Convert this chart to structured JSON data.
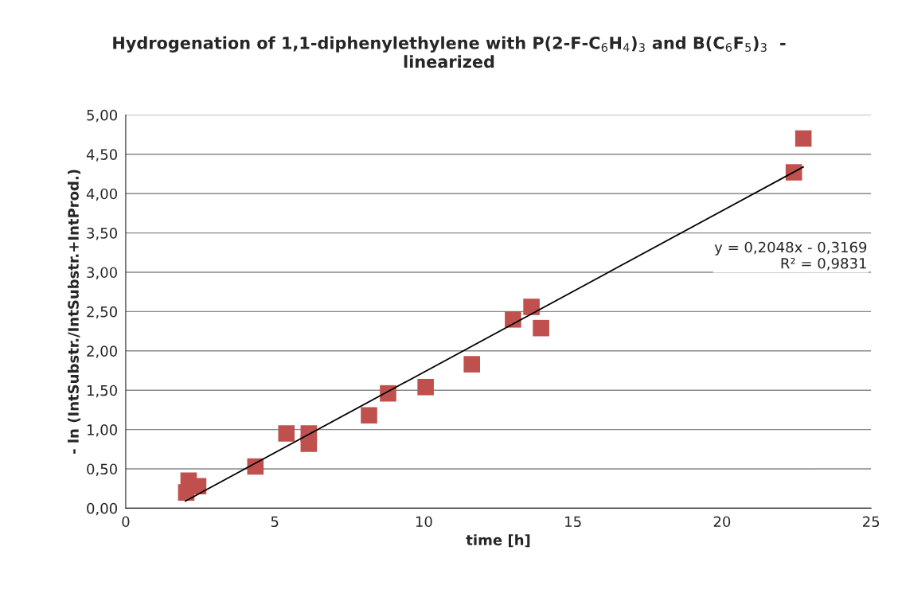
{
  "chart_data": {
    "type": "scatter",
    "title": "Hydrogenation of 1,1-diphenylethylene with P(2-F-C$_{6}$H$_{4}$)$_{3}$ and B(C$_{6}$F$_{5}$)$_{3}$  -\nlinearized",
    "xlabel": "time [h]",
    "ylabel": "- ln (IntSubstr./IntSubstr.+IntProd.)",
    "series": [
      {
        "color": "#c0504d",
        "marker": "square",
        "x": [
          2.03,
          2.11,
          2.43,
          4.35,
          5.39,
          6.14,
          6.14,
          8.16,
          8.8,
          10.06,
          11.61,
          12.99,
          13.61,
          13.93,
          22.41,
          22.73
        ],
        "values": [
          0.2,
          0.35,
          0.28,
          0.53,
          0.95,
          0.95,
          0.82,
          1.18,
          1.46,
          1.54,
          1.83,
          2.4,
          2.56,
          2.29,
          4.27,
          4.7
        ]
      },
      {
        "type": "line",
        "color": "#000000",
        "marker": "none",
        "x": [
          2.0,
          22.73
        ],
        "values": [
          0.09,
          4.34
        ]
      }
    ],
    "annotations": [
      "y = 0,2048x - 0,3169\nR² = 0,9831"
    ],
    "xlim": [
      0,
      25
    ],
    "xticks": [
      0,
      5,
      10,
      15,
      20,
      25
    ],
    "ylim": [
      0,
      5
    ],
    "yticks": [
      {
        "value": 0,
        "label": "0,00"
      },
      {
        "value": 0.5,
        "label": "0,50"
      },
      {
        "value": 1,
        "label": "1,00"
      },
      {
        "value": 1.5,
        "label": "1,50"
      },
      {
        "value": 2,
        "label": "2,00"
      },
      {
        "value": 2.5,
        "label": "2,50"
      },
      {
        "value": 3,
        "label": "3,00"
      },
      {
        "value": 3.5,
        "label": "3,50"
      },
      {
        "value": 4,
        "label": "4,00"
      },
      {
        "value": 4.5,
        "label": "4,50"
      },
      {
        "value": 5,
        "label": "5,00"
      }
    ],
    "grid": "y",
    "legend": false
  }
}
